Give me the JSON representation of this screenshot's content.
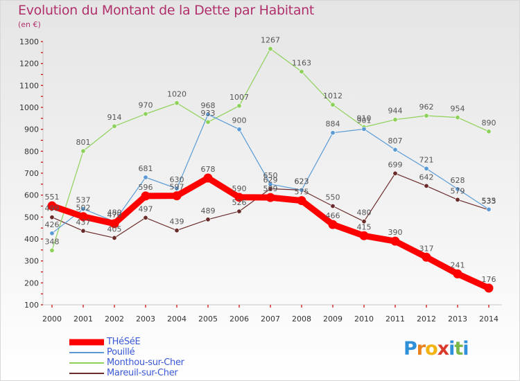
{
  "title": "Evolution du Montant de la Dette par Habitant",
  "subtitle": "(en €)",
  "logo": {
    "letters": [
      "P",
      "r",
      "o",
      "x",
      "i",
      "t",
      "i"
    ],
    "colors": [
      "#2f8fd8",
      "#e8821e",
      "#f2b313",
      "#d93a2b",
      "#2f8fd8",
      "#7ab648",
      "#2f8fd8"
    ]
  },
  "chart_data": {
    "type": "line",
    "title": "Evolution du Montant de la Dette par Habitant",
    "ylabel": "(en €)",
    "xlabel": "",
    "x": [
      "2000",
      "2001",
      "2002",
      "2003",
      "2004",
      "2005",
      "2006",
      "2007",
      "2008",
      "2009",
      "2010",
      "2011",
      "2012",
      "2013",
      "2014"
    ],
    "yticks": [
      100,
      200,
      300,
      400,
      500,
      600,
      700,
      800,
      900,
      1000,
      1100,
      1200,
      1300
    ],
    "ylim": [
      100,
      1300
    ],
    "grid": false,
    "legend_position": "bottom-left",
    "series": [
      {
        "name": "Mareuil-sur-Cher",
        "color": "#6b2b2b",
        "width": 1.2,
        "point_r": 3.2,
        "values": [
          499,
          437,
          405,
          497,
          439,
          489,
          526,
          629,
          623,
          550,
          480,
          699,
          642,
          579,
          533
        ]
      },
      {
        "name": "Monthou-sur-Cher",
        "color": "#8ed15a",
        "width": 1.2,
        "point_r": 3.2,
        "values": [
          348,
          801,
          914,
          970,
          1020,
          933,
          1007,
          1267,
          1163,
          1012,
          910,
          944,
          962,
          954,
          890
        ]
      },
      {
        "name": "Pouillé",
        "color": "#5a9bd6",
        "width": 1.2,
        "point_r": 3.2,
        "values": [
          426,
          537,
          480,
          681,
          630,
          968,
          900,
          650,
          623,
          884,
          901,
          807,
          721,
          628,
          535
        ]
      },
      {
        "name": "THéSéE",
        "color": "#ff0000",
        "width": 9,
        "point_r": 6.5,
        "values": [
          551,
          502,
          470,
          596,
          597,
          678,
          590,
          589,
          575,
          466,
          415,
          390,
          317,
          241,
          176
        ]
      }
    ],
    "legend_order": [
      "THéSéE",
      "Pouillé",
      "Monthou-sur-Cher",
      "Mareuil-sur-Cher"
    ]
  }
}
